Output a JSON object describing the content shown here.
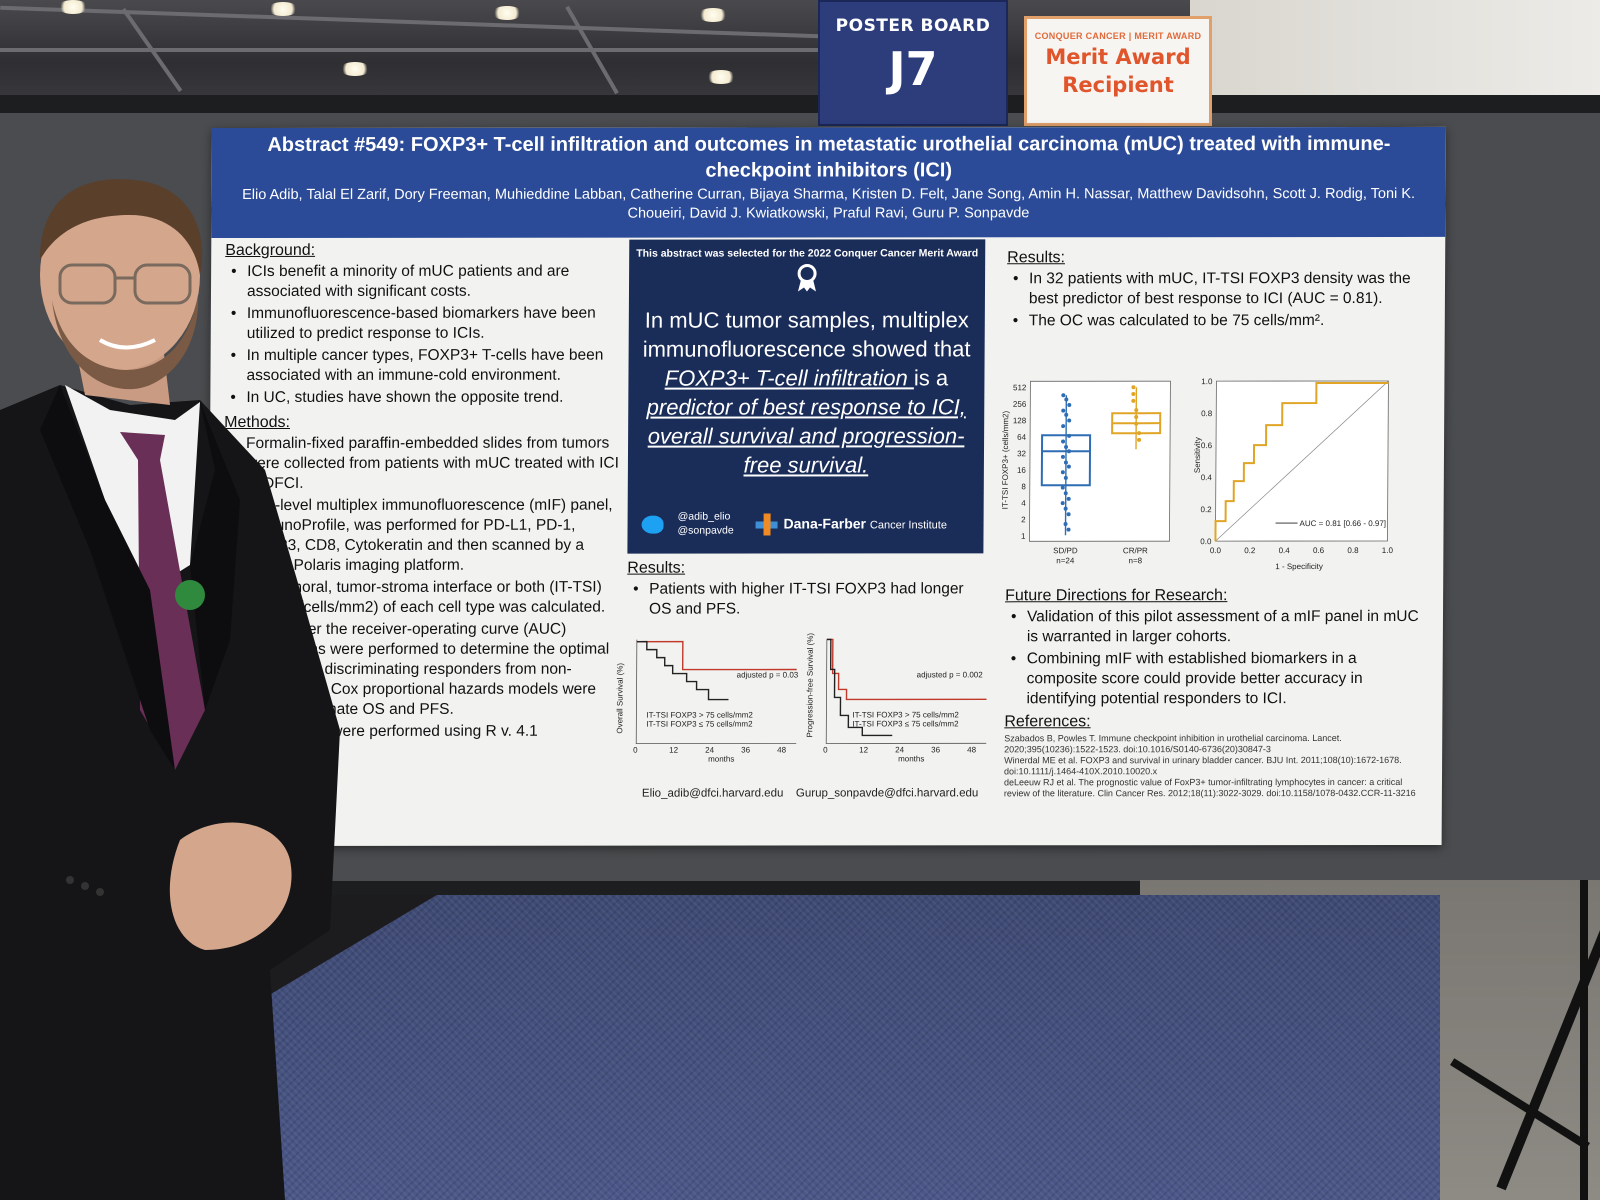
{
  "signs": {
    "poster_board_label": "POSTER BOARD",
    "poster_board_number": "J7",
    "award_org": "CONQUER CANCER | MERIT AWARD",
    "award_line1": "Merit Award",
    "award_line2": "Recipient"
  },
  "poster": {
    "title": "Abstract #549: FOXP3+ T-cell infiltration and outcomes in metastatic urothelial carcinoma (mUC) treated with immune-checkpoint inhibitors (ICI)",
    "authors": "Elio Adib, Talal El Zarif, Dory Freeman, Muhieddine Labban, Catherine Curran, Bijaya Sharma, Kristen D. Felt, Jane Song, Amin H. Nassar, Matthew Davidsohn, Scott J. Rodig, Toni K. Choueiri, David J. Kwiatkowski, Praful Ravi, Guru P. Sonpavde",
    "background": {
      "heading": "Background:",
      "items": [
        "ICIs benefit a minority of mUC patients and are associated with significant costs.",
        "Immunofluorescence-based biomarkers have been utilized to predict response to ICIs.",
        "In multiple cancer types, FOXP3+ T-cells have been associated with an immune-cold environment.",
        "In UC, studies have shown the opposite trend."
      ]
    },
    "methods": {
      "heading": "Methods:",
      "items": [
        "Formalin-fixed paraffin-embedded slides from tumors were collected from patients with mUC treated with ICI at DFCI.",
        "Five-level multiplex immunofluorescence (mIF) panel, ImmunoProfile, was performed for PD-L1, PD-1, FOXP3, CD8, Cytokeratin and then scanned by a Vectra Polaris imaging platform.",
        "Intratumoral, tumor-stroma interface or both (IT-TSI) density (cells/mm2) of each cell type was calculated.",
        "Area under the receiver-operating curve (AUC) calculations were performed to determine the optimal cutoff (OC) discriminating responders from non-responders. Cox proportional hazards models were used to estimate OS and PFS.",
        "All analyses were performed using R v. 4.1"
      ]
    },
    "center": {
      "award_note": "This abstract was selected for the 2022 Conquer Cancer Merit Award",
      "lead": "In mUC tumor samples, multiplex immunofluorescence showed that ",
      "em1": "FOXP3+ T-cell infiltration ",
      "mid": "is a ",
      "em2": "predictor of best response to ICI, overall survival and progression-free survival.",
      "handle1": "@adib_elio",
      "handle2": "@sonpavde",
      "institute_bold": "Dana-Farber",
      "institute_rest": "Cancer Institute"
    },
    "results_left": {
      "heading": "Results:",
      "items": [
        "Patients with higher IT-TSI FOXP3 had longer OS and PFS."
      ]
    },
    "results_right": {
      "heading": "Results:",
      "items": [
        "In 32 patients with mUC, IT-TSI FOXP3 density was the best predictor of best response to ICI (AUC = 0.81).",
        "The OC was calculated to be 75 cells/mm²."
      ]
    },
    "future": {
      "heading": "Future Directions for Research:",
      "items": [
        "Validation of this pilot assessment of a mIF panel in mUC is warranted in larger cohorts.",
        "Combining mIF with established biomarkers in a composite score could provide better accuracy in identifying potential responders to ICI."
      ]
    },
    "references": {
      "heading": "References:",
      "items": [
        "Szabados B, Powles T. Immune checkpoint inhibition in urothelial carcinoma. Lancet. 2020;395(10236):1522-1523. doi:10.1016/S0140-6736(20)30847-3",
        "Winerdal ME et al. FOXP3 and survival in urinary bladder cancer. BJU Int. 2011;108(10):1672-1678. doi:10.1111/j.1464-410X.2010.10020.x",
        "deLeeuw RJ et al. The prognostic value of FoxP3+ tumor-infiltrating lymphocytes in cancer: a critical review of the literature. Clin Cancer Res. 2012;18(11):3022-3029. doi:10.1158/1078-0432.CCR-11-3216"
      ]
    },
    "emails": {
      "left": "Elio_adib@dfci.harvard.edu",
      "right": "Gurup_sonpavde@dfci.harvard.edu"
    }
  },
  "figures": {
    "boxplot": {
      "ylabel": "IT-TSI FOXP3+ (cells/mm2)",
      "yticks": [
        "512",
        "256",
        "128",
        "64",
        "32",
        "16",
        "8",
        "4",
        "2",
        "1"
      ],
      "groups": [
        {
          "label": "SD/PD",
          "n": "n=24",
          "color": "#2e6db4"
        },
        {
          "label": "CR/PR",
          "n": "n=8",
          "color": "#e0a526"
        }
      ]
    },
    "roc": {
      "xlabel": "1 - Specificity",
      "ylabel": "Sensitivity",
      "ticks": [
        "0.0",
        "0.2",
        "0.4",
        "0.6",
        "0.8",
        "1.0"
      ],
      "legend": "AUC = 0.81 [0.66 - 0.97]",
      "color": "#e0a526"
    },
    "os": {
      "ylabel": "Overall Survival (%)",
      "annot": "adjusted p = 0.03",
      "legend_hi": "IT-TSI FOXP3 > 75 cells/mm2",
      "legend_lo": "IT-TSI FOXP3 ≤ 75 cells/mm2",
      "xticks": [
        "0",
        "12",
        "24",
        "36",
        "48"
      ],
      "xlabel": "months"
    },
    "pfs": {
      "ylabel": "Progression-free Survival (%)",
      "annot": "adjusted p = 0.002",
      "legend_hi": "IT-TSI FOXP3 > 75 cells/mm2",
      "legend_lo": "IT-TSI FOXP3 ≤ 75 cells/mm2",
      "xticks": [
        "0",
        "12",
        "24",
        "36",
        "48"
      ],
      "xlabel": "months"
    },
    "colors": {
      "high": "#c0392b",
      "low": "#222222"
    }
  }
}
